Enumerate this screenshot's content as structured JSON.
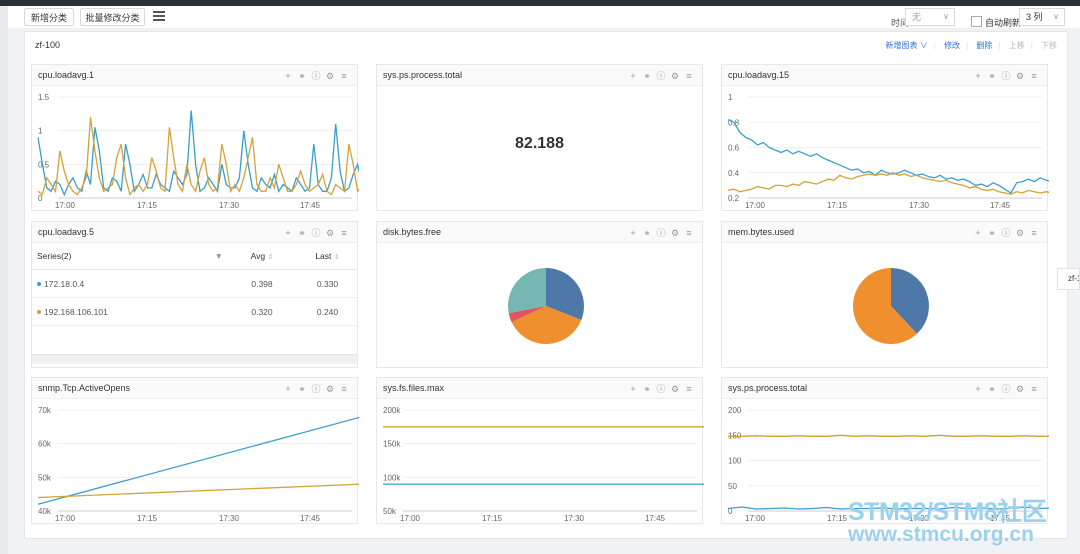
{
  "toolbar": {
    "add_category": "新增分类",
    "batch_edit_category": "批量修改分类",
    "time_label": "时间:",
    "time_value": "无",
    "auto_refresh_label": "自动刷新",
    "columns_value": "3 列"
  },
  "group": {
    "title": "zf-100",
    "actions": {
      "add_chart": "新增图表 ∨",
      "edit": "修改",
      "delete": "删除",
      "move_up": "上移",
      "move_down": "下移"
    }
  },
  "side_tab": "zf-1",
  "icons": [
    "plus-icon",
    "link-icon",
    "info-icon",
    "gear-icon",
    "menu-icon"
  ],
  "colors": {
    "blue": "#3a9fcb",
    "orange": "#d4a23a",
    "steel": "#4e78a8",
    "pie_orange": "#ef8f2e",
    "teal": "#76b7b2",
    "red": "#e05563"
  },
  "panels": [
    {
      "title": "cpu.loadavg.1"
    },
    {
      "title": "sys.ps.process.total",
      "value": "82.188"
    },
    {
      "title": "cpu.loadavg.15"
    },
    {
      "title": "cpu.loadavg.5"
    },
    {
      "title": "disk.bytes.free"
    },
    {
      "title": "mem.bytes.used"
    },
    {
      "title": "snmp.Tcp.ActiveOpens"
    },
    {
      "title": "sys.fs.files.max"
    },
    {
      "title": "sys.ps.process.total"
    }
  ],
  "table": {
    "columns": {
      "series": "Series(2)",
      "avg": "Avg",
      "last": "Last"
    },
    "rows": [
      {
        "name": "172.18.0.4",
        "avg": "0.398",
        "last": "0.330"
      },
      {
        "name": "192.168.106.101",
        "avg": "0.320",
        "last": "0.240"
      }
    ]
  },
  "chart_data": [
    {
      "type": "line",
      "panel": "cpu.loadavg.1",
      "x_ticks": [
        "17:00",
        "17:15",
        "17:30",
        "17:45"
      ],
      "y_ticks": [
        "0",
        "0.5",
        "1",
        "1.5"
      ],
      "ylim": [
        0,
        1.5
      ],
      "series": [
        {
          "color": "#3a9fcb",
          "values": [
            0.9,
            0.5,
            0.15,
            0.1,
            0.25,
            0.2,
            0.05,
            0.2,
            0.3,
            0.15,
            0.1,
            0.4,
            0.2,
            1.05,
            0.7,
            0.15,
            0.1,
            0.3,
            0.25,
            0.1,
            0.8,
            0.5,
            0.1,
            0.2,
            0.35,
            0.15,
            0.15,
            0.35,
            0.2,
            0.15,
            0.1,
            0.4,
            0.3,
            0.2,
            0.35,
            1.3,
            0.5,
            0.1,
            0.15,
            0.3,
            0.2,
            0.1,
            0.5,
            0.2,
            0.15,
            0.15,
            0.3,
            1.0,
            0.5,
            0.15,
            0.1,
            0.3,
            0.2,
            0.15,
            0.35,
            0.1,
            0.2,
            0.15,
            0.1,
            0.3,
            0.2,
            0.1,
            0.15,
            0.8,
            0.2,
            0.1,
            0.1,
            0.3,
            1.1,
            0.4,
            0.1,
            0.15,
            0.35,
            0.5,
            0.2
          ]
        },
        {
          "color": "#d4a23a",
          "values": [
            0.1,
            0.05,
            0.3,
            0.2,
            0.1,
            0.7,
            0.4,
            0.2,
            0.1,
            0.05,
            0.15,
            0.3,
            1.2,
            0.7,
            0.3,
            0.1,
            0.15,
            0.2,
            0.6,
            0.8,
            0.3,
            0.05,
            0.15,
            0.2,
            0.1,
            0.2,
            0.6,
            0.4,
            0.15,
            0.1,
            1.05,
            0.6,
            0.2,
            0.1,
            0.5,
            0.2,
            0.1,
            0.4,
            0.6,
            0.2,
            0.1,
            0.15,
            0.8,
            0.5,
            0.1,
            0.2,
            0.1,
            0.3,
            0.6,
            0.9,
            0.2,
            0.1,
            0.1,
            0.3,
            0.15,
            0.5,
            0.3,
            0.1,
            0.1,
            0.2,
            0.4,
            0.2,
            0.1,
            0.15,
            0.2,
            0.35,
            0.1,
            0.05,
            0.2,
            0.15,
            0.1,
            0.8,
            0.5,
            0.1,
            0.2
          ]
        }
      ]
    },
    {
      "type": "line",
      "panel": "cpu.loadavg.15",
      "x_ticks": [
        "17:00",
        "17:15",
        "17:30",
        "17:45"
      ],
      "y_ticks": [
        "0.2",
        "0.4",
        "0.6",
        "0.8",
        "1"
      ],
      "ylim": [
        0.2,
        1
      ],
      "series": [
        {
          "color": "#3a9fcb",
          "values": [
            0.82,
            0.8,
            0.72,
            0.68,
            0.66,
            0.62,
            0.64,
            0.6,
            0.58,
            0.56,
            0.58,
            0.55,
            0.57,
            0.55,
            0.53,
            0.55,
            0.52,
            0.5,
            0.48,
            0.46,
            0.44,
            0.42,
            0.43,
            0.4,
            0.41,
            0.38,
            0.42,
            0.4,
            0.39,
            0.4,
            0.42,
            0.4,
            0.38,
            0.39,
            0.37,
            0.36,
            0.38,
            0.35,
            0.36,
            0.34,
            0.35,
            0.33,
            0.3,
            0.31,
            0.29,
            0.32,
            0.3,
            0.27,
            0.24,
            0.32,
            0.33,
            0.35,
            0.33,
            0.36,
            0.34,
            0.33
          ]
        },
        {
          "color": "#d4a23a",
          "values": [
            0.26,
            0.27,
            0.25,
            0.26,
            0.27,
            0.29,
            0.28,
            0.27,
            0.3,
            0.3,
            0.29,
            0.31,
            0.3,
            0.33,
            0.32,
            0.31,
            0.33,
            0.35,
            0.34,
            0.38,
            0.36,
            0.35,
            0.37,
            0.38,
            0.39,
            0.38,
            0.39,
            0.38,
            0.4,
            0.38,
            0.39,
            0.37,
            0.38,
            0.36,
            0.35,
            0.34,
            0.33,
            0.34,
            0.32,
            0.31,
            0.3,
            0.28,
            0.29,
            0.27,
            0.26,
            0.27,
            0.25,
            0.24,
            0.23,
            0.25,
            0.24,
            0.26,
            0.25,
            0.24,
            0.25,
            0.24
          ]
        }
      ]
    },
    {
      "type": "pie",
      "panel": "disk.bytes.free",
      "slices": [
        {
          "color": "#4e78a8",
          "value": 31
        },
        {
          "color": "#ef8f2e",
          "value": 37
        },
        {
          "color": "#e05563",
          "value": 4
        },
        {
          "color": "#76b7b2",
          "value": 28
        }
      ]
    },
    {
      "type": "pie",
      "panel": "mem.bytes.used",
      "slices": [
        {
          "color": "#4e78a8",
          "value": 38
        },
        {
          "color": "#ef8f2e",
          "value": 62
        }
      ]
    },
    {
      "type": "line",
      "panel": "snmp.Tcp.ActiveOpens",
      "x_ticks": [
        "17:00",
        "17:15",
        "17:30",
        "17:45"
      ],
      "y_ticks": [
        "40k",
        "50k",
        "60k",
        "70k"
      ],
      "ylim": [
        40000,
        70000
      ],
      "series": [
        {
          "color": "#3a9fcb",
          "values": [
            42000,
            68000
          ]
        },
        {
          "color": "#d4a23a",
          "values": [
            44000,
            48000
          ]
        }
      ]
    },
    {
      "type": "line",
      "panel": "sys.fs.files.max",
      "x_ticks": [
        "17:00",
        "17:15",
        "17:30",
        "17:45"
      ],
      "y_ticks": [
        "50k",
        "100k",
        "150k",
        "200k"
      ],
      "ylim": [
        50000,
        200000
      ],
      "series": [
        {
          "color": "#d4a23a",
          "values": [
            175000,
            175000
          ]
        },
        {
          "color": "#3a9fcb",
          "values": [
            90000,
            90000
          ]
        }
      ]
    },
    {
      "type": "line",
      "panel": "sys.ps.process.total",
      "x_ticks": [
        "17:00",
        "17:15",
        "17:30",
        "17:45"
      ],
      "y_ticks": [
        "0",
        "50",
        "100",
        "150",
        "200"
      ],
      "ylim": [
        0,
        200
      ],
      "series": [
        {
          "color": "#d4a23a",
          "values": [
            148,
            148,
            149,
            148,
            148,
            149,
            148,
            148,
            150,
            148,
            149,
            148,
            148,
            149,
            148,
            150,
            148,
            148,
            149,
            148,
            148,
            149,
            148,
            148
          ]
        },
        {
          "color": "#3a9fcb",
          "values": [
            5,
            8,
            4,
            5,
            6,
            4,
            5,
            7,
            4,
            5,
            5,
            6,
            4,
            5,
            5,
            4,
            7,
            5,
            6,
            4,
            5,
            8,
            5,
            6
          ]
        }
      ]
    }
  ],
  "watermark": {
    "line1": "STM32/STM8社区",
    "line2": "www.stmcu.org.cn"
  }
}
